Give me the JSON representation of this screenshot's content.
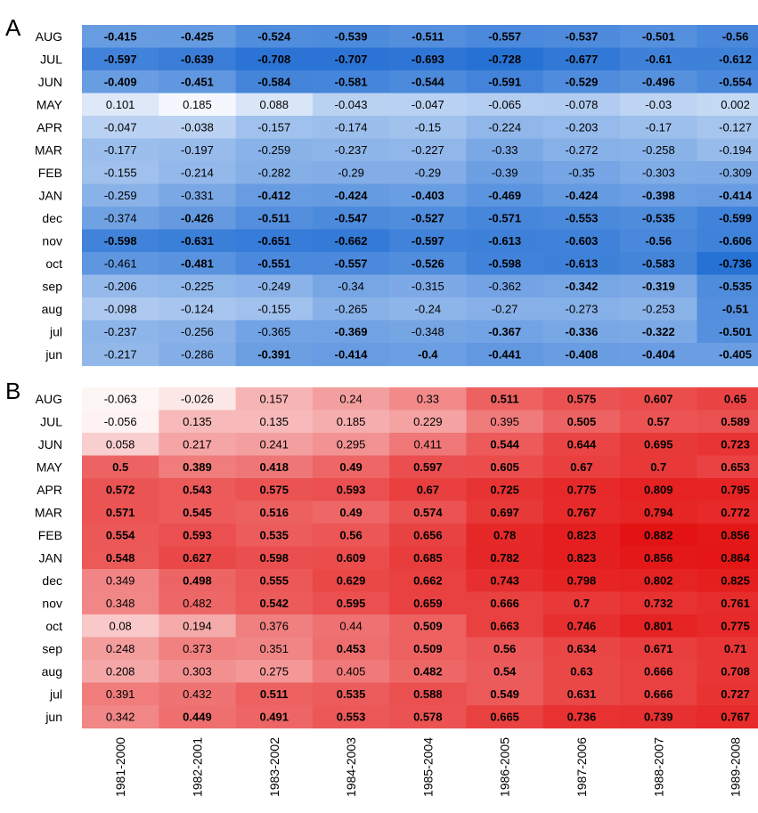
{
  "chart_data": [
    {
      "type": "heatmap",
      "panel_label": "A",
      "color_scheme": "blue",
      "rows": [
        "AUG",
        "JUL",
        "JUN",
        "MAY",
        "APR",
        "MAR",
        "FEB",
        "JAN",
        "dec",
        "nov",
        "oct",
        "sep",
        "aug",
        "jul",
        "jun"
      ],
      "columns": [
        "1981-2000",
        "1982-2001",
        "1983-2002",
        "1984-2003",
        "1985-2004",
        "1986-2005",
        "1987-2006",
        "1988-2007",
        "1989-2008"
      ],
      "values": [
        [
          "-0.415",
          "-0.425",
          "-0.524",
          "-0.539",
          "-0.511",
          "-0.557",
          "-0.537",
          "-0.501",
          "-0.56"
        ],
        [
          "-0.597",
          "-0.639",
          "-0.708",
          "-0.707",
          "-0.693",
          "-0.728",
          "-0.677",
          "-0.61",
          "-0.612"
        ],
        [
          "-0.409",
          "-0.451",
          "-0.584",
          "-0.581",
          "-0.544",
          "-0.591",
          "-0.529",
          "-0.496",
          "-0.554"
        ],
        [
          "0.101",
          "0.185",
          "0.088",
          "-0.043",
          "-0.047",
          "-0.065",
          "-0.078",
          "-0.03",
          "0.002"
        ],
        [
          "-0.047",
          "-0.038",
          "-0.157",
          "-0.174",
          "-0.15",
          "-0.224",
          "-0.203",
          "-0.17",
          "-0.127"
        ],
        [
          "-0.177",
          "-0.197",
          "-0.259",
          "-0.237",
          "-0.227",
          "-0.33",
          "-0.272",
          "-0.258",
          "-0.194"
        ],
        [
          "-0.155",
          "-0.214",
          "-0.282",
          "-0.29",
          "-0.29",
          "-0.39",
          "-0.35",
          "-0.303",
          "-0.309"
        ],
        [
          "-0.259",
          "-0.331",
          "-0.412",
          "-0.424",
          "-0.403",
          "-0.469",
          "-0.424",
          "-0.398",
          "-0.414"
        ],
        [
          "-0.374",
          "-0.426",
          "-0.511",
          "-0.547",
          "-0.527",
          "-0.571",
          "-0.553",
          "-0.535",
          "-0.599"
        ],
        [
          "-0.598",
          "-0.631",
          "-0.651",
          "-0.662",
          "-0.597",
          "-0.613",
          "-0.603",
          "-0.56",
          "-0.606"
        ],
        [
          "-0.461",
          "-0.481",
          "-0.551",
          "-0.557",
          "-0.526",
          "-0.598",
          "-0.613",
          "-0.583",
          "-0.736"
        ],
        [
          "-0.206",
          "-0.225",
          "-0.249",
          "-0.34",
          "-0.315",
          "-0.362",
          "-0.342",
          "-0.319",
          "-0.535"
        ],
        [
          "-0.098",
          "-0.124",
          "-0.155",
          "-0.265",
          "-0.24",
          "-0.27",
          "-0.273",
          "-0.253",
          "-0.51"
        ],
        [
          "-0.237",
          "-0.256",
          "-0.365",
          "-0.369",
          "-0.348",
          "-0.367",
          "-0.336",
          "-0.322",
          "-0.501"
        ],
        [
          "-0.217",
          "-0.286",
          "-0.391",
          "-0.414",
          "-0.4",
          "-0.441",
          "-0.408",
          "-0.404",
          "-0.405"
        ]
      ],
      "bold": [
        [
          1,
          1,
          1,
          1,
          1,
          1,
          1,
          1,
          1
        ],
        [
          1,
          1,
          1,
          1,
          1,
          1,
          1,
          1,
          1
        ],
        [
          1,
          1,
          1,
          1,
          1,
          1,
          1,
          1,
          1
        ],
        [
          0,
          0,
          0,
          0,
          0,
          0,
          0,
          0,
          0
        ],
        [
          0,
          0,
          0,
          0,
          0,
          0,
          0,
          0,
          0
        ],
        [
          0,
          0,
          0,
          0,
          0,
          0,
          0,
          0,
          0
        ],
        [
          0,
          0,
          0,
          0,
          0,
          0,
          0,
          0,
          0
        ],
        [
          0,
          0,
          1,
          1,
          1,
          1,
          1,
          1,
          1
        ],
        [
          0,
          1,
          1,
          1,
          1,
          1,
          1,
          1,
          1
        ],
        [
          1,
          1,
          1,
          1,
          1,
          1,
          1,
          1,
          1
        ],
        [
          0,
          1,
          1,
          1,
          1,
          1,
          1,
          1,
          1
        ],
        [
          0,
          0,
          0,
          0,
          0,
          0,
          1,
          1,
          1
        ],
        [
          0,
          0,
          0,
          0,
          0,
          0,
          0,
          0,
          1
        ],
        [
          0,
          0,
          0,
          1,
          0,
          1,
          1,
          1,
          1
        ],
        [
          0,
          0,
          1,
          1,
          1,
          1,
          1,
          1,
          1
        ]
      ]
    },
    {
      "type": "heatmap",
      "panel_label": "B",
      "color_scheme": "red",
      "rows": [
        "AUG",
        "JUL",
        "JUN",
        "MAY",
        "APR",
        "MAR",
        "FEB",
        "JAN",
        "dec",
        "nov",
        "oct",
        "sep",
        "aug",
        "jul",
        "jun"
      ],
      "columns": [
        "1981-2000",
        "1982-2001",
        "1983-2002",
        "1984-2003",
        "1985-2004",
        "1986-2005",
        "1987-2006",
        "1988-2007",
        "1989-2008"
      ],
      "values": [
        [
          "-0.063",
          "-0.026",
          "0.157",
          "0.24",
          "0.33",
          "0.511",
          "0.575",
          "0.607",
          "0.65"
        ],
        [
          "-0.056",
          "0.135",
          "0.135",
          "0.185",
          "0.229",
          "0.395",
          "0.505",
          "0.57",
          "0.589"
        ],
        [
          "0.058",
          "0.217",
          "0.241",
          "0.295",
          "0.411",
          "0.544",
          "0.644",
          "0.695",
          "0.723"
        ],
        [
          "0.5",
          "0.389",
          "0.418",
          "0.49",
          "0.597",
          "0.605",
          "0.67",
          "0.7",
          "0.653"
        ],
        [
          "0.572",
          "0.543",
          "0.575",
          "0.593",
          "0.67",
          "0.725",
          "0.775",
          "0.809",
          "0.795"
        ],
        [
          "0.571",
          "0.545",
          "0.516",
          "0.49",
          "0.574",
          "0.697",
          "0.767",
          "0.794",
          "0.772"
        ],
        [
          "0.554",
          "0.593",
          "0.535",
          "0.56",
          "0.656",
          "0.78",
          "0.823",
          "0.882",
          "0.856"
        ],
        [
          "0.548",
          "0.627",
          "0.598",
          "0.609",
          "0.685",
          "0.782",
          "0.823",
          "0.856",
          "0.864"
        ],
        [
          "0.349",
          "0.498",
          "0.555",
          "0.629",
          "0.662",
          "0.743",
          "0.798",
          "0.802",
          "0.825"
        ],
        [
          "0.348",
          "0.482",
          "0.542",
          "0.595",
          "0.659",
          "0.666",
          "0.7",
          "0.732",
          "0.761"
        ],
        [
          "0.08",
          "0.194",
          "0.376",
          "0.44",
          "0.509",
          "0.663",
          "0.746",
          "0.801",
          "0.775"
        ],
        [
          "0.248",
          "0.373",
          "0.351",
          "0.453",
          "0.509",
          "0.56",
          "0.634",
          "0.671",
          "0.71"
        ],
        [
          "0.208",
          "0.303",
          "0.275",
          "0.405",
          "0.482",
          "0.54",
          "0.63",
          "0.666",
          "0.708"
        ],
        [
          "0.391",
          "0.432",
          "0.511",
          "0.535",
          "0.588",
          "0.549",
          "0.631",
          "0.666",
          "0.727"
        ],
        [
          "0.342",
          "0.449",
          "0.491",
          "0.553",
          "0.578",
          "0.665",
          "0.736",
          "0.739",
          "0.767"
        ]
      ],
      "bold": [
        [
          0,
          0,
          0,
          0,
          0,
          1,
          1,
          1,
          1
        ],
        [
          0,
          0,
          0,
          0,
          0,
          0,
          1,
          1,
          1
        ],
        [
          0,
          0,
          0,
          0,
          0,
          1,
          1,
          1,
          1
        ],
        [
          1,
          1,
          1,
          1,
          1,
          1,
          1,
          1,
          1
        ],
        [
          1,
          1,
          1,
          1,
          1,
          1,
          1,
          1,
          1
        ],
        [
          1,
          1,
          1,
          1,
          1,
          1,
          1,
          1,
          1
        ],
        [
          1,
          1,
          1,
          1,
          1,
          1,
          1,
          1,
          1
        ],
        [
          1,
          1,
          1,
          1,
          1,
          1,
          1,
          1,
          1
        ],
        [
          0,
          1,
          1,
          1,
          1,
          1,
          1,
          1,
          1
        ],
        [
          0,
          0,
          1,
          1,
          1,
          1,
          1,
          1,
          1
        ],
        [
          0,
          0,
          0,
          0,
          1,
          1,
          1,
          1,
          1
        ],
        [
          0,
          0,
          0,
          1,
          1,
          1,
          1,
          1,
          1
        ],
        [
          0,
          0,
          0,
          0,
          1,
          1,
          1,
          1,
          1
        ],
        [
          0,
          0,
          1,
          1,
          1,
          1,
          1,
          1,
          1
        ],
        [
          0,
          1,
          1,
          1,
          1,
          1,
          1,
          1,
          1
        ]
      ]
    }
  ]
}
